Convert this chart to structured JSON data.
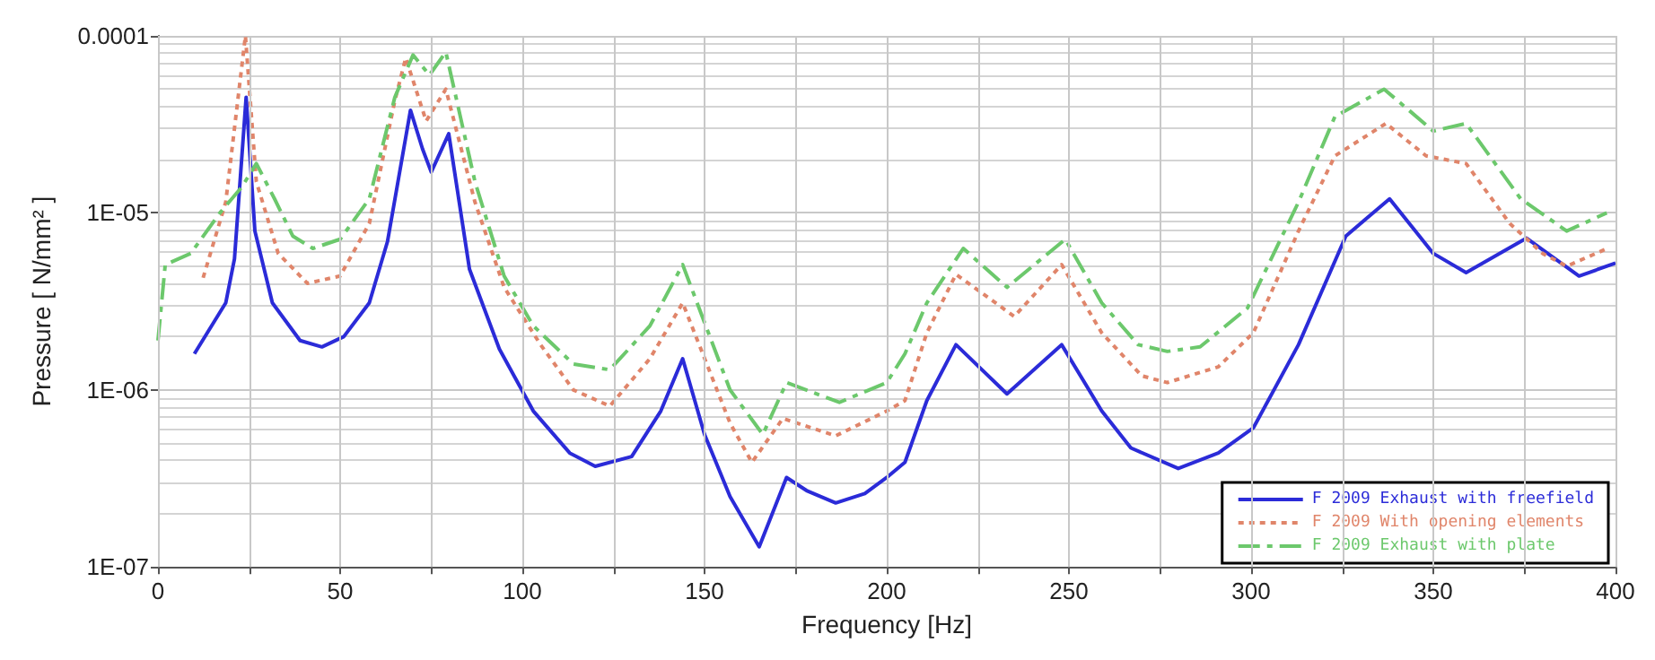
{
  "chart_data": {
    "type": "line",
    "xlabel": "Frequency [Hz]",
    "ylabel": "Pressure [ N/mm² ]",
    "log": "y",
    "grid": true,
    "legend": "bottom right",
    "marker": "none",
    "xlim": [
      0,
      400
    ],
    "xticks": [
      0,
      {
        "value": 25,
        "label": null
      },
      50,
      {
        "value": 75,
        "label": null
      },
      100,
      {
        "value": 125,
        "label": null
      },
      150,
      {
        "value": 175,
        "label": null
      },
      200,
      {
        "value": 225,
        "label": null
      },
      250,
      {
        "value": 275,
        "label": null
      },
      300,
      {
        "value": 325,
        "label": null
      },
      350,
      {
        "value": 375,
        "label": null
      },
      400
    ],
    "ylim": [
      1e-07,
      0.0001
    ],
    "yticks": [
      {
        "value": 1e-07,
        "label": "1E-07"
      },
      {
        "value": 1e-06,
        "label": "1E-06"
      },
      {
        "value": 1e-05,
        "label": "1E-05"
      },
      {
        "value": 0.0001,
        "label": "0.0001"
      }
    ],
    "series": [
      {
        "name": "F 2009 Exhaust with freefield",
        "color": "#2b2bd8",
        "line_style": "solid",
        "x": [
          10,
          18.6,
          21,
          24.2,
          26.6,
          31.4,
          39,
          45,
          51,
          58,
          63,
          69.3,
          72.6,
          75,
          79.8,
          85.5,
          93.7,
          103,
          113,
          120,
          130,
          138,
          144,
          150,
          157,
          165,
          172.5,
          178,
          186,
          194,
          200,
          205,
          211,
          219,
          233,
          248,
          259,
          267,
          280,
          291,
          300.6,
          313,
          326,
          338,
          350,
          359,
          375.6,
          390,
          400
        ],
        "values": [
          1.6e-06,
          3.1e-06,
          5.5e-06,
          4.5e-05,
          7.9e-06,
          3.1e-06,
          1.9e-06,
          1.75e-06,
          2e-06,
          3.1e-06,
          6.9e-06,
          3.8e-05,
          2.3e-05,
          1.7e-05,
          2.8e-05,
          4.8e-06,
          1.7e-06,
          7.6e-07,
          4.4e-07,
          3.7e-07,
          4.2e-07,
          7.6e-07,
          1.5e-06,
          5.6e-07,
          2.5e-07,
          1.3e-07,
          3.2e-07,
          2.7e-07,
          2.3e-07,
          2.6e-07,
          3.2e-07,
          3.9e-07,
          8.7e-07,
          1.8e-06,
          9.5e-07,
          1.8e-06,
          7.6e-07,
          4.7e-07,
          3.6e-07,
          4.4e-07,
          6.1e-07,
          1.8e-06,
          7.4e-06,
          1.2e-05,
          5.9e-06,
          4.6e-06,
          7.2e-06,
          4.4e-06,
          5.2e-06
        ]
      },
      {
        "name": "F 2009 With opening elements",
        "color": "#e0856a",
        "line_style": "dotted",
        "x": [
          12.4,
          18.6,
          24,
          27,
          33,
          41,
          50,
          58,
          65,
          68,
          73.6,
          79,
          87,
          95,
          105,
          114,
          124,
          135,
          144,
          149,
          157,
          163,
          171.5,
          186,
          200,
          205,
          211,
          219,
          235,
          248,
          259,
          270,
          277,
          291,
          300.6,
          313,
          323,
          337,
          348,
          359,
          371,
          380,
          386.6,
          397
        ],
        "values": [
          4.3e-06,
          1.15e-05,
          0.0001,
          1.5e-05,
          5.9e-06,
          4e-06,
          4.4e-06,
          8.7e-06,
          4.3e-05,
          7.5e-05,
          3.3e-05,
          5e-05,
          1.15e-05,
          3.8e-06,
          1.8e-06,
          1e-06,
          8.1e-07,
          1.5e-06,
          3.1e-06,
          1.7e-06,
          6.5e-07,
          3.9e-07,
          6.9e-07,
          5.5e-07,
          7.6e-07,
          8.7e-07,
          2.1e-06,
          4.5e-06,
          2.6e-06,
          5.1e-06,
          2.1e-06,
          1.2e-06,
          1.1e-06,
          1.35e-06,
          2.1e-06,
          7.9e-06,
          2.1e-05,
          3.2e-05,
          2.1e-05,
          1.9e-05,
          8.7e-06,
          5.9e-06,
          5e-06,
          6.2e-06
        ]
      },
      {
        "name": "F 2009 Exhaust with plate",
        "color": "#6cc86c",
        "line_style": "dashed",
        "x": [
          0,
          2,
          9,
          17,
          23,
          27,
          32,
          37,
          42.5,
          50,
          58,
          65,
          70,
          74.5,
          79,
          87,
          95,
          103,
          114,
          124,
          135,
          144,
          150,
          157,
          166,
          172.5,
          187,
          200,
          205,
          211,
          221,
          233,
          249,
          259,
          269,
          277,
          286,
          299,
          313,
          323,
          336.5,
          350,
          359,
          374,
          386.6,
          397.6
        ],
        "values": [
          1.9e-06,
          5.1e-06,
          5.9e-06,
          1e-05,
          1.4e-05,
          1.9e-05,
          1.2e-05,
          7.4e-06,
          6.3e-06,
          7.1e-06,
          1.2e-05,
          4.5e-05,
          7.8e-05,
          6e-05,
          8.1e-05,
          1.5e-05,
          4.4e-06,
          2.3e-06,
          1.4e-06,
          1.3e-06,
          2.3e-06,
          5.1e-06,
          2.4e-06,
          1e-06,
          5.6e-07,
          1.1e-06,
          8.5e-07,
          1.1e-06,
          1.6e-06,
          3.1e-06,
          6.3e-06,
          3.8e-06,
          7.1e-06,
          3.1e-06,
          1.8e-06,
          1.65e-06,
          1.75e-06,
          2.9e-06,
          1.15e-05,
          3.5e-05,
          5e-05,
          2.9e-05,
          3.2e-05,
          1.2e-05,
          7.9e-06,
          1e-05
        ]
      }
    ]
  }
}
